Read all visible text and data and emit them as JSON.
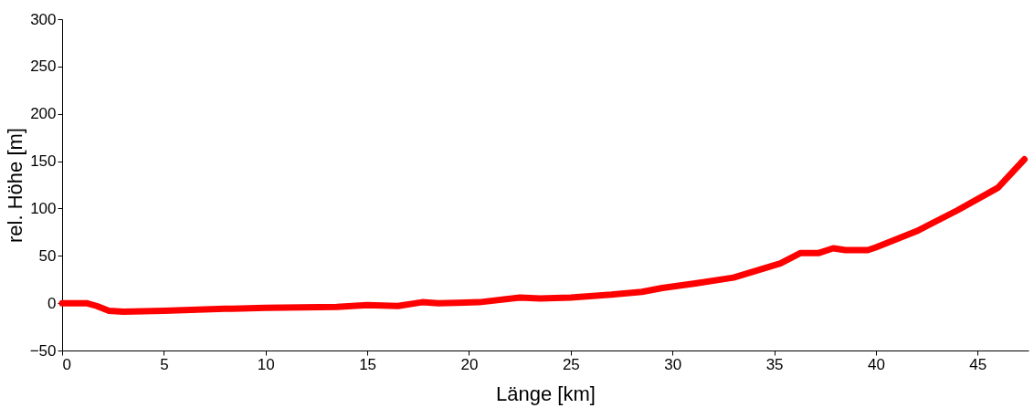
{
  "chart_data": {
    "type": "line",
    "xlabel": "Länge [km]",
    "ylabel": "rel. Höhe [m]",
    "x": [
      0,
      1.2,
      1.7,
      2.3,
      3,
      5,
      8,
      10,
      13.5,
      15,
      16.5,
      17.7,
      18.5,
      20.5,
      22.5,
      23.5,
      25,
      27,
      28.5,
      29.5,
      31.5,
      33,
      35.3,
      36.3,
      37.2,
      37.9,
      38.5,
      39.6,
      40,
      42,
      44,
      46,
      47.3
    ],
    "series": [
      {
        "color": "#ff0000",
        "values": [
          0,
          0,
          -3,
          -8,
          -9,
          -8,
          -6,
          -5,
          -4,
          -2,
          -3,
          1,
          0,
          1,
          6,
          5,
          6,
          9,
          12,
          16,
          22,
          27,
          42,
          53,
          53,
          58,
          56,
          56,
          59,
          76,
          98,
          122,
          152
        ]
      }
    ],
    "xlim": [
      0,
      47.5
    ],
    "xticks": [
      0,
      5,
      10,
      15,
      20,
      25,
      30,
      35,
      40,
      45
    ],
    "ylim": [
      -50,
      300
    ],
    "yticks": [
      -50,
      0,
      50,
      100,
      150,
      200,
      250,
      300
    ],
    "grid": false,
    "line_style": "solid"
  }
}
